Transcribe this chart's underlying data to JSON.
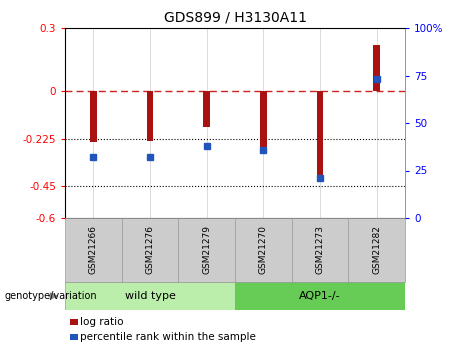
{
  "title": "GDS899 / H3130A11",
  "categories": [
    "GSM21266",
    "GSM21276",
    "GSM21279",
    "GSM21270",
    "GSM21273",
    "GSM21282"
  ],
  "log_ratios": [
    -0.24,
    -0.235,
    -0.17,
    -0.265,
    -0.4,
    0.22
  ],
  "percentile_ranks": [
    32,
    32,
    38,
    36,
    21,
    73
  ],
  "ylim_left": [
    -0.6,
    0.3
  ],
  "ylim_right": [
    0,
    100
  ],
  "yticks_left": [
    0.3,
    0,
    -0.225,
    -0.45,
    -0.6
  ],
  "ytick_labels_left": [
    "0.3",
    "0",
    "-0.225",
    "-0.45",
    "-0.6"
  ],
  "yticks_right": [
    100,
    75,
    50,
    25,
    0
  ],
  "ytick_labels_right": [
    "100%",
    "75",
    "50",
    "25",
    "0"
  ],
  "hlines": [
    -0.225,
    -0.45
  ],
  "bar_color": "#aa1111",
  "dot_color": "#2255bb",
  "zero_line_color": "#cc2222",
  "hline_color": "#000000",
  "wild_type_label": "wild type",
  "aqp_label": "AQP1-/-",
  "genotype_label": "genotype/variation",
  "legend_log_ratio": "log ratio",
  "legend_percentile": "percentile rank within the sample",
  "bg_color": "#ffffff",
  "bar_width": 0.12,
  "wild_type_color": "#bbeeaa",
  "aqp_color": "#66cc55",
  "sample_box_color": "#cccccc"
}
